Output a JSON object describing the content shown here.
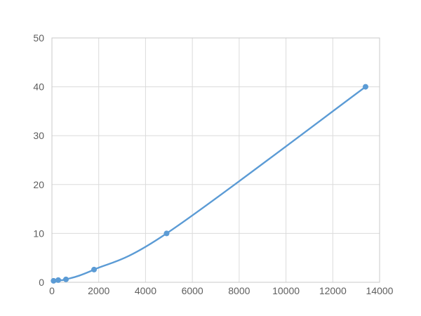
{
  "chart": {
    "kind": "standard-curve-line-chart",
    "background": "#FFFFFF"
  },
  "chart_data": {
    "type": "line",
    "title": "",
    "xlabel": "",
    "ylabel": "",
    "legend": false,
    "grid": true,
    "smooth": true,
    "xlim": [
      0,
      14000
    ],
    "ylim": [
      0,
      50
    ],
    "x_ticks": [
      0,
      2000,
      4000,
      6000,
      8000,
      10000,
      12000,
      14000
    ],
    "y_ticks": [
      0,
      10,
      20,
      30,
      40,
      50
    ],
    "series": [
      {
        "name": "standard-curve",
        "x": [
          70,
          270,
          600,
          1800,
          4900,
          13400
        ],
        "y": [
          0.3,
          0.45,
          0.6,
          2.6,
          10,
          40
        ],
        "line_color": "#5B9BD5",
        "marker_color": "#5B9BD5",
        "marker_radius": 4,
        "line_width": 2.4
      }
    ],
    "colors": {
      "grid_color": "#DBDBDB",
      "border_color": "#C8C8C8",
      "tick_label_color": "#5E5E5E",
      "background": "#FFFFFF"
    }
  }
}
